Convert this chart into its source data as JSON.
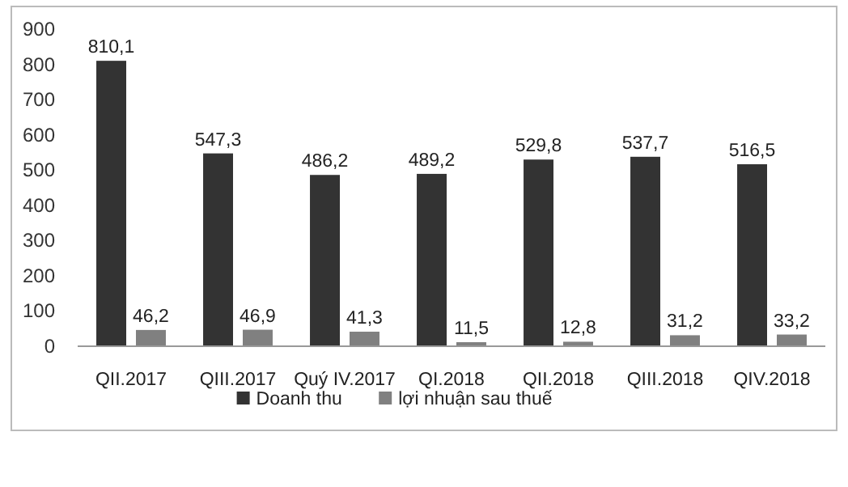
{
  "chart_data": {
    "type": "bar",
    "categories": [
      "QII.2017",
      "QIII.2017",
      "Quý IV.2017",
      "QI.2018",
      "QII.2018",
      "QIII.2018",
      "QIV.2018"
    ],
    "series": [
      {
        "name": "Doanh thu",
        "color": "#333333",
        "values": [
          810.1,
          547.3,
          486.2,
          489.2,
          529.8,
          537.7,
          516.5
        ],
        "value_labels": [
          "810,1",
          "547,3",
          "486,2",
          "489,2",
          "529,8",
          "537,7",
          "516,5"
        ]
      },
      {
        "name": "lợi nhuận sau thuế",
        "color": "#808080",
        "values": [
          46.2,
          46.9,
          41.3,
          11.5,
          12.8,
          31.2,
          33.2
        ],
        "value_labels": [
          "46,2",
          "46,9",
          "41,3",
          "11,5",
          "12,8",
          "31,2",
          "33,2"
        ]
      }
    ],
    "ylim": [
      0,
      900
    ],
    "yticks": [
      0,
      100,
      200,
      300,
      400,
      500,
      600,
      700,
      800,
      900
    ],
    "grid": false,
    "legend": "bottom"
  }
}
